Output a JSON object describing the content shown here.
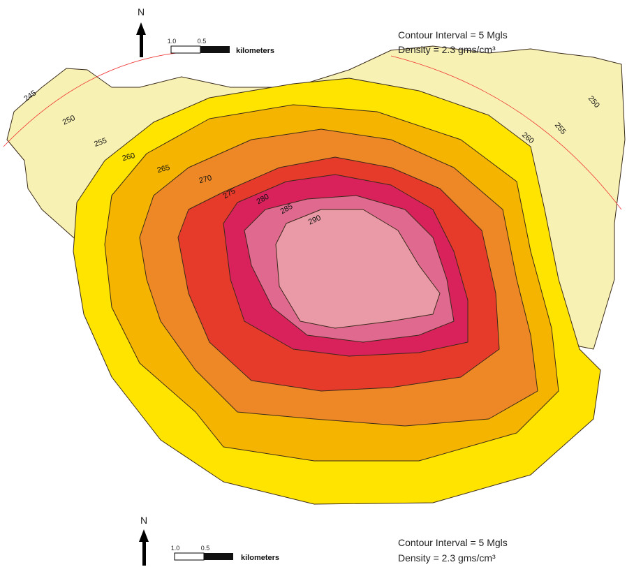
{
  "legends": [
    {
      "north": "N",
      "scale_labels": [
        "1.0",
        "0.5"
      ],
      "scale_unit": "kilometers",
      "contour_interval": "Contour Interval = 5 Mgls",
      "density": "Density = 2.3 gms/cm³"
    },
    {
      "north": "N",
      "scale_labels": [
        "1.0",
        "0.5"
      ],
      "scale_unit": "kilometers",
      "contour_interval": "Contour Interval = 5 Mgls",
      "density": "Density = 2.3 gms/cm³"
    }
  ],
  "contour_labels": [
    "245",
    "250",
    "255",
    "260",
    "265",
    "270",
    "275",
    "280",
    "285",
    "290",
    "250",
    "255",
    "260"
  ]
}
